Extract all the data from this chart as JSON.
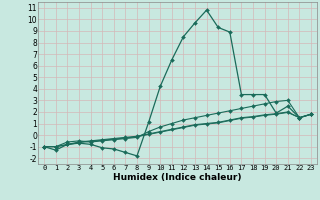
{
  "xlabel": "Humidex (Indice chaleur)",
  "background_color": "#c8e8e0",
  "grid_color": "#b0ccc8",
  "line_color": "#1a6b5a",
  "xlim": [
    -0.5,
    23.5
  ],
  "ylim": [
    -2.5,
    11.5
  ],
  "xticks": [
    0,
    1,
    2,
    3,
    4,
    5,
    6,
    7,
    8,
    9,
    10,
    11,
    12,
    13,
    14,
    15,
    16,
    17,
    18,
    19,
    20,
    21,
    22,
    23
  ],
  "yticks": [
    -2,
    -1,
    0,
    1,
    2,
    3,
    4,
    5,
    6,
    7,
    8,
    9,
    10,
    11
  ],
  "series_main": [
    [
      0,
      -1.0
    ],
    [
      1,
      -1.3
    ],
    [
      2,
      -0.8
    ],
    [
      3,
      -0.7
    ],
    [
      4,
      -0.8
    ],
    [
      5,
      -1.1
    ],
    [
      6,
      -1.2
    ],
    [
      7,
      -1.5
    ],
    [
      8,
      -1.8
    ],
    [
      9,
      1.1
    ],
    [
      10,
      4.2
    ],
    [
      11,
      6.5
    ],
    [
      12,
      8.5
    ],
    [
      13,
      9.7
    ],
    [
      14,
      10.8
    ],
    [
      15,
      9.3
    ],
    [
      16,
      8.9
    ],
    [
      17,
      3.5
    ],
    [
      18,
      3.5
    ],
    [
      19,
      3.5
    ],
    [
      20,
      1.9
    ],
    [
      21,
      2.5
    ],
    [
      22,
      1.5
    ],
    [
      23,
      1.8
    ]
  ],
  "series_rising": [
    [
      0,
      -1.0
    ],
    [
      1,
      -1.0
    ],
    [
      2,
      -0.6
    ],
    [
      3,
      -0.5
    ],
    [
      4,
      -0.6
    ],
    [
      5,
      -0.5
    ],
    [
      6,
      -0.4
    ],
    [
      7,
      -0.3
    ],
    [
      8,
      -0.2
    ],
    [
      9,
      0.3
    ],
    [
      10,
      0.7
    ],
    [
      11,
      1.0
    ],
    [
      12,
      1.3
    ],
    [
      13,
      1.5
    ],
    [
      14,
      1.7
    ],
    [
      15,
      1.9
    ],
    [
      16,
      2.1
    ],
    [
      17,
      2.3
    ],
    [
      18,
      2.5
    ],
    [
      19,
      2.7
    ],
    [
      20,
      2.9
    ],
    [
      21,
      3.0
    ],
    [
      22,
      1.5
    ],
    [
      23,
      1.8
    ]
  ],
  "series_flat1": [
    [
      0,
      -1.0
    ],
    [
      1,
      -1.0
    ],
    [
      2,
      -0.8
    ],
    [
      3,
      -0.6
    ],
    [
      4,
      -0.5
    ],
    [
      5,
      -0.4
    ],
    [
      6,
      -0.3
    ],
    [
      7,
      -0.2
    ],
    [
      8,
      -0.1
    ],
    [
      9,
      0.1
    ],
    [
      10,
      0.3
    ],
    [
      11,
      0.5
    ],
    [
      12,
      0.7
    ],
    [
      13,
      0.9
    ],
    [
      14,
      1.0
    ],
    [
      15,
      1.1
    ],
    [
      16,
      1.3
    ],
    [
      17,
      1.5
    ],
    [
      18,
      1.6
    ],
    [
      19,
      1.75
    ],
    [
      20,
      1.85
    ],
    [
      21,
      2.0
    ],
    [
      22,
      1.5
    ],
    [
      23,
      1.8
    ]
  ],
  "series_flat2": [
    [
      0,
      -1.0
    ],
    [
      1,
      -1.0
    ],
    [
      2,
      -0.85
    ],
    [
      3,
      -0.65
    ],
    [
      4,
      -0.55
    ],
    [
      5,
      -0.45
    ],
    [
      6,
      -0.35
    ],
    [
      7,
      -0.25
    ],
    [
      8,
      -0.15
    ],
    [
      9,
      0.05
    ],
    [
      10,
      0.25
    ],
    [
      11,
      0.45
    ],
    [
      12,
      0.65
    ],
    [
      13,
      0.85
    ],
    [
      14,
      0.95
    ],
    [
      15,
      1.05
    ],
    [
      16,
      1.25
    ],
    [
      17,
      1.45
    ],
    [
      18,
      1.55
    ],
    [
      19,
      1.7
    ],
    [
      20,
      1.8
    ],
    [
      21,
      1.95
    ],
    [
      22,
      1.5
    ],
    [
      23,
      1.8
    ]
  ]
}
